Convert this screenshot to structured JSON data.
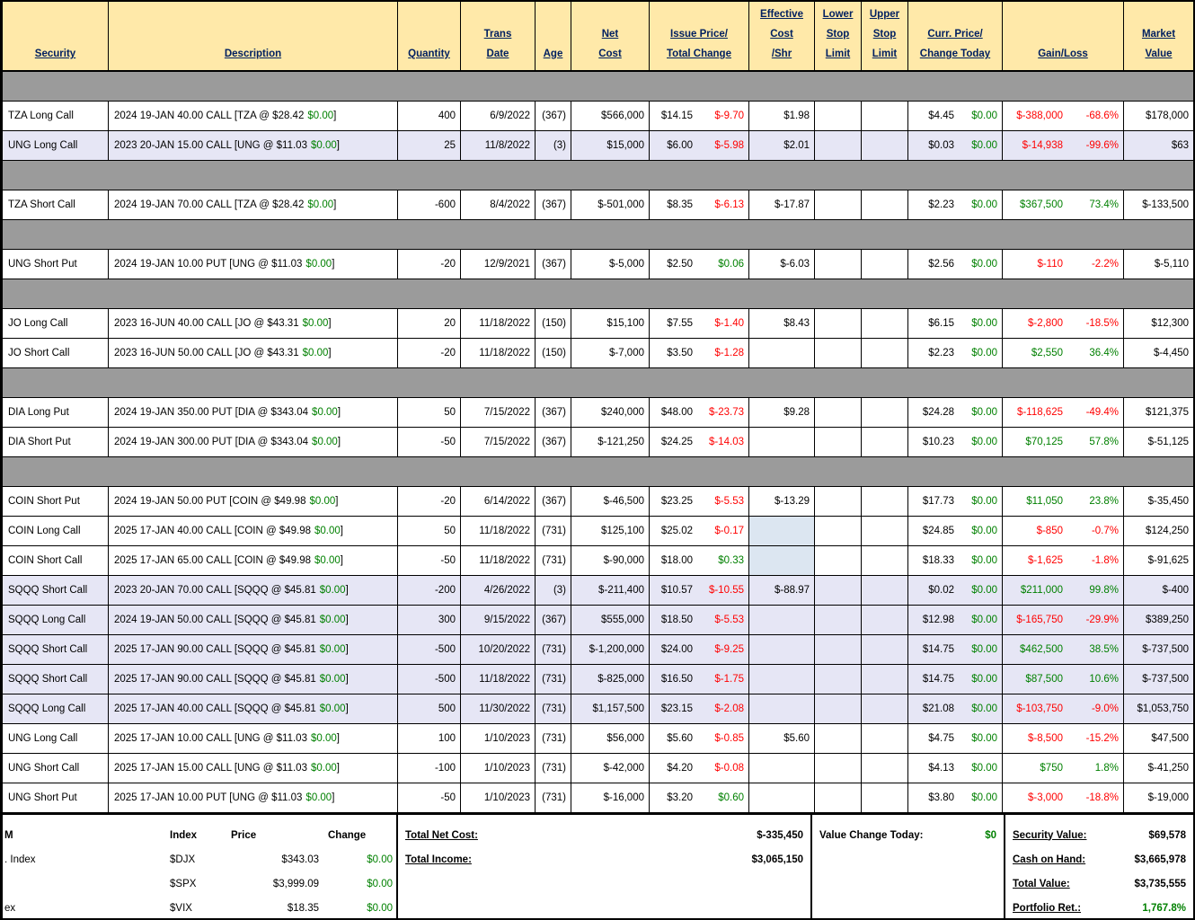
{
  "colors": {
    "header_bg": "#FFE9A9",
    "separator": "#9B9B9B",
    "row_alt": "#E6E6F5",
    "eff_cost_block": "#DCE6F1",
    "negative": "#FF0000",
    "positive": "#008000",
    "header_text": "#002060"
  },
  "format": {
    "desc_close": "]"
  },
  "header": {
    "columns": [
      {
        "key": "security",
        "lines": [
          "Security"
        ]
      },
      {
        "key": "description",
        "lines": [
          "Description"
        ]
      },
      {
        "key": "quantity",
        "lines": [
          "Quantity"
        ]
      },
      {
        "key": "trans-date",
        "lines": [
          "Trans",
          "Date"
        ]
      },
      {
        "key": "age",
        "lines": [
          "Age"
        ]
      },
      {
        "key": "net-cost",
        "lines": [
          "Net",
          "Cost"
        ]
      },
      {
        "key": "issue-price-total-change",
        "lines": [
          "Issue Price/",
          "Total Change"
        ]
      },
      {
        "key": "effective-cost-shr",
        "lines": [
          "Effective",
          "Cost",
          "/Shr"
        ]
      },
      {
        "key": "lower-stop-limit",
        "lines": [
          "Lower",
          "Stop",
          "Limit"
        ]
      },
      {
        "key": "upper-stop-limit",
        "lines": [
          "Upper",
          "Stop",
          "Limit"
        ]
      },
      {
        "key": "curr-price-change-today",
        "lines": [
          "Curr. Price/",
          "Change Today"
        ]
      },
      {
        "key": "gain-loss",
        "lines": [
          "Gain/Loss"
        ]
      },
      {
        "key": "market-value",
        "lines": [
          "Market",
          "Value"
        ]
      }
    ]
  },
  "rows": [
    {
      "type": "sep"
    },
    {
      "sec": "TZA Long Call",
      "desc": "2024 19-JAN 40.00 CALL [TZA @ $28.42",
      "chg": "$0.00",
      "qty": "400",
      "date": "6/9/2022",
      "age": "(367)",
      "net": "$566,000",
      "ip": "$14.15",
      "tc": "$-9.70",
      "ec": "$1.98",
      "cp": "$4.45",
      "ct": "$0.00",
      "gain": "$-388,000",
      "pct": "-68.6%",
      "mv": "$178,000"
    },
    {
      "sec": "UNG Long Call",
      "desc": "2023 20-JAN 15.00 CALL [UNG @ $11.03",
      "chg": "$0.00",
      "qty": "25",
      "date": "11/8/2022",
      "age": "(3)",
      "net": "$15,000",
      "ip": "$6.00",
      "tc": "$-5.98",
      "ec": "$2.01",
      "cp": "$0.03",
      "ct": "$0.00",
      "gain": "$-14,938",
      "pct": "-99.6%",
      "mv": "$63",
      "shade": "lav"
    },
    {
      "type": "sep"
    },
    {
      "sec": "TZA Short Call",
      "desc": "2024 19-JAN 70.00 CALL [TZA @ $28.42",
      "chg": "$0.00",
      "qty": "-600",
      "date": "8/4/2022",
      "age": "(367)",
      "net": "$-501,000",
      "ip": "$8.35",
      "tc": "$-6.13",
      "ec": "$-17.87",
      "cp": "$2.23",
      "ct": "$0.00",
      "gain": "$367,500",
      "pct": "73.4%",
      "mv": "$-133,500"
    },
    {
      "type": "sep"
    },
    {
      "sec": "UNG Short Put",
      "desc": "2024 19-JAN 10.00 PUT [UNG @ $11.03",
      "chg": "$0.00",
      "qty": "-20",
      "date": "12/9/2021",
      "age": "(367)",
      "net": "$-5,000",
      "ip": "$2.50",
      "tc": "$0.06",
      "ec": "$-6.03",
      "cp": "$2.56",
      "ct": "$0.00",
      "gain": "$-110",
      "pct": "-2.2%",
      "mv": "$-5,110"
    },
    {
      "type": "sep"
    },
    {
      "sec": "JO Long Call",
      "desc": "2023 16-JUN 40.00 CALL [JO @ $43.31",
      "chg": "$0.00",
      "qty": "20",
      "date": "11/18/2022",
      "age": "(150)",
      "net": "$15,100",
      "ip": "$7.55",
      "tc": "$-1.40",
      "ec": "$8.43",
      "cp": "$6.15",
      "ct": "$0.00",
      "gain": "$-2,800",
      "pct": "-18.5%",
      "mv": "$12,300"
    },
    {
      "sec": "JO Short Call",
      "desc": "2023 16-JUN 50.00 CALL [JO @ $43.31",
      "chg": "$0.00",
      "qty": "-20",
      "date": "11/18/2022",
      "age": "(150)",
      "net": "$-7,000",
      "ip": "$3.50",
      "tc": "$-1.28",
      "ec": "",
      "cp": "$2.23",
      "ct": "$0.00",
      "gain": "$2,550",
      "pct": "36.4%",
      "mv": "$-4,450"
    },
    {
      "type": "sep"
    },
    {
      "sec": "DIA Long Put",
      "desc": "2024 19-JAN 350.00 PUT [DIA @ $343.04",
      "chg": "$0.00",
      "qty": "50",
      "date": "7/15/2022",
      "age": "(367)",
      "net": "$240,000",
      "ip": "$48.00",
      "tc": "$-23.73",
      "ec": "$9.28",
      "cp": "$24.28",
      "ct": "$0.00",
      "gain": "$-118,625",
      "pct": "-49.4%",
      "mv": "$121,375"
    },
    {
      "sec": "DIA Short Put",
      "desc": "2024 19-JAN 300.00 PUT [DIA @ $343.04",
      "chg": "$0.00",
      "qty": "-50",
      "date": "7/15/2022",
      "age": "(367)",
      "net": "$-121,250",
      "ip": "$24.25",
      "tc": "$-14.03",
      "ec": "",
      "cp": "$10.23",
      "ct": "$0.00",
      "gain": "$70,125",
      "pct": "57.8%",
      "mv": "$-51,125"
    },
    {
      "type": "sep"
    },
    {
      "sec": "COIN Short Put",
      "desc": "2024 19-JAN 50.00 PUT [COIN @ $49.98",
      "chg": "$0.00",
      "qty": "-20",
      "date": "6/14/2022",
      "age": "(367)",
      "net": "$-46,500",
      "ip": "$23.25",
      "tc": "$-5.53",
      "ec": "$-13.29",
      "cp": "$17.73",
      "ct": "$0.00",
      "gain": "$11,050",
      "pct": "23.8%",
      "mv": "$-35,450"
    },
    {
      "sec": "COIN Long Call",
      "desc": "2025 17-JAN 40.00 CALL [COIN @ $49.98",
      "chg": "$0.00",
      "qty": "50",
      "date": "11/18/2022",
      "age": "(731)",
      "net": "$125,100",
      "ip": "$25.02",
      "tc": "$-0.17",
      "ec": "",
      "ecb": true,
      "cp": "$24.85",
      "ct": "$0.00",
      "gain": "$-850",
      "pct": "-0.7%",
      "mv": "$124,250"
    },
    {
      "sec": "COIN Short Call",
      "desc": "2025 17-JAN 65.00 CALL [COIN @ $49.98",
      "chg": "$0.00",
      "qty": "-50",
      "date": "11/18/2022",
      "age": "(731)",
      "net": "$-90,000",
      "ip": "$18.00",
      "tc": "$0.33",
      "ec": "",
      "ecb": true,
      "cp": "$18.33",
      "ct": "$0.00",
      "gain": "$-1,625",
      "pct": "-1.8%",
      "mv": "$-91,625"
    },
    {
      "sec": "SQQQ Short Call",
      "desc": "2023 20-JAN 70.00 CALL [SQQQ @ $45.81",
      "chg": "$0.00",
      "qty": "-200",
      "date": "4/26/2022",
      "age": "(3)",
      "net": "$-211,400",
      "ip": "$10.57",
      "tc": "$-10.55",
      "ec": "$-88.97",
      "ecb": true,
      "cp": "$0.02",
      "ct": "$0.00",
      "gain": "$211,000",
      "pct": "99.8%",
      "mv": "$-400",
      "shade": "lav"
    },
    {
      "sec": "SQQQ Long Call",
      "desc": "2024 19-JAN 50.00 CALL [SQQQ @ $45.81",
      "chg": "$0.00",
      "qty": "300",
      "date": "9/15/2022",
      "age": "(367)",
      "net": "$555,000",
      "ip": "$18.50",
      "tc": "$-5.53",
      "ec": "",
      "ecb": true,
      "cp": "$12.98",
      "ct": "$0.00",
      "gain": "$-165,750",
      "pct": "-29.9%",
      "mv": "$389,250",
      "shade": "lav"
    },
    {
      "sec": "SQQQ Short Call",
      "desc": "2025 17-JAN 90.00 CALL [SQQQ @ $45.81",
      "chg": "$0.00",
      "qty": "-500",
      "date": "10/20/2022",
      "age": "(731)",
      "net": "$-1,200,000",
      "ip": "$24.00",
      "tc": "$-9.25",
      "ec": "",
      "ecb": true,
      "cp": "$14.75",
      "ct": "$0.00",
      "gain": "$462,500",
      "pct": "38.5%",
      "mv": "$-737,500",
      "shade": "lav"
    },
    {
      "sec": "SQQQ Short Call",
      "desc": "2025 17-JAN 90.00 CALL [SQQQ @ $45.81",
      "chg": "$0.00",
      "qty": "-500",
      "date": "11/18/2022",
      "age": "(731)",
      "net": "$-825,000",
      "ip": "$16.50",
      "tc": "$-1.75",
      "ec": "",
      "ecb": true,
      "cp": "$14.75",
      "ct": "$0.00",
      "gain": "$87,500",
      "pct": "10.6%",
      "mv": "$-737,500",
      "shade": "lav"
    },
    {
      "sec": "SQQQ Long Call",
      "desc": "2025 17-JAN 40.00 CALL [SQQQ @ $45.81",
      "chg": "$0.00",
      "qty": "500",
      "date": "11/30/2022",
      "age": "(731)",
      "net": "$1,157,500",
      "ip": "$23.15",
      "tc": "$-2.08",
      "ec": "",
      "ecb": true,
      "cp": "$21.08",
      "ct": "$0.00",
      "gain": "$-103,750",
      "pct": "-9.0%",
      "mv": "$1,053,750",
      "shade": "lav"
    },
    {
      "sec": "UNG Long Call",
      "desc": "2025 17-JAN 10.00 CALL [UNG @ $11.03",
      "chg": "$0.00",
      "qty": "100",
      "date": "1/10/2023",
      "age": "(731)",
      "net": "$56,000",
      "ip": "$5.60",
      "tc": "$-0.85",
      "ec": "$5.60",
      "cp": "$4.75",
      "ct": "$0.00",
      "gain": "$-8,500",
      "pct": "-15.2%",
      "mv": "$47,500"
    },
    {
      "sec": "UNG Short Call",
      "desc": "2025 17-JAN 15.00 CALL [UNG @ $11.03",
      "chg": "$0.00",
      "qty": "-100",
      "date": "1/10/2023",
      "age": "(731)",
      "net": "$-42,000",
      "ip": "$4.20",
      "tc": "$-0.08",
      "ec": "",
      "cp": "$4.13",
      "ct": "$0.00",
      "gain": "$750",
      "pct": "1.8%",
      "mv": "$-41,250"
    },
    {
      "sec": "UNG Short Put",
      "desc": "2025 17-JAN 10.00 PUT [UNG @ $11.03",
      "chg": "$0.00",
      "qty": "-50",
      "date": "1/10/2023",
      "age": "(731)",
      "net": "$-16,000",
      "ip": "$3.20",
      "tc": "$0.60",
      "ec": "",
      "cp": "$3.80",
      "ct": "$0.00",
      "gain": "$-3,000",
      "pct": "-18.8%",
      "mv": "$-19,000"
    }
  ],
  "footer": {
    "index_panel": {
      "col1": [
        "M",
        ". Index",
        "",
        "ex"
      ],
      "header": {
        "index": "Index",
        "price": "Price",
        "change": "Change"
      },
      "rows": [
        {
          "symbol": "$DJX",
          "price": "$343.03",
          "change": "$0.00"
        },
        {
          "symbol": "$SPX",
          "price": "$3,999.09",
          "change": "$0.00"
        },
        {
          "symbol": "$VIX",
          "price": "$18.35",
          "change": "$0.00"
        }
      ]
    },
    "totals_left": [
      {
        "label": "Total Net Cost:",
        "value": "$-335,450"
      },
      {
        "label": "Total Income:",
        "value": "$3,065,150"
      }
    ],
    "value_change": {
      "label": "Value Change Today:",
      "value": "$0"
    },
    "totals_right": [
      {
        "label": "Security Value:",
        "value": "$69,578"
      },
      {
        "label": "Cash on Hand:",
        "value": "$3,665,978"
      },
      {
        "label": "Total Value:",
        "value": "$3,735,555"
      },
      {
        "label": "Portfolio Ret.:",
        "value": "1,767.8%"
      }
    ]
  }
}
